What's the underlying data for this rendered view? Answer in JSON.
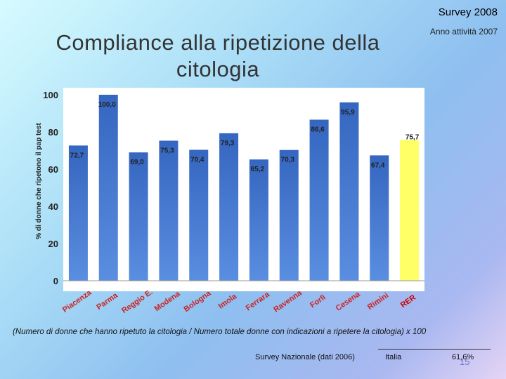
{
  "header": {
    "survey": "Survey 2008",
    "activity": "Anno attività 2007"
  },
  "title": "Compliance alla ripetizione della citologia",
  "chart_data": {
    "type": "bar",
    "title": "Compliance alla ripetizione della citologia",
    "ylabel": "% di donne che ripetono il pap test",
    "xlabel": "",
    "ylim": [
      0,
      100
    ],
    "yticks": [
      0,
      20,
      40,
      60,
      80,
      100
    ],
    "grid": false,
    "categories": [
      "Piacenza",
      "Parma",
      "Reggio E.",
      "Modena",
      "Bologna",
      "Imola",
      "Ferrara",
      "Ravenna",
      "Forlì",
      "Cesena",
      "Rimini",
      "RER"
    ],
    "values": [
      72.7,
      100.0,
      69.0,
      75.3,
      70.4,
      79.3,
      65.2,
      70.3,
      86.6,
      95.9,
      67.4,
      75.7
    ],
    "value_labels": [
      "72,7",
      "100,0",
      "69,0",
      "75,3",
      "70,4",
      "79,3",
      "65,2",
      "70,3",
      "86,6",
      "95,9",
      "67,4",
      "75,7"
    ],
    "bar_color": "#3f6fc4",
    "highlight_color": "#ffff66",
    "highlight_index": 11
  },
  "footnote": "(Numero di donne che hanno ripetuto la citologia / Numero totale donne con indicazioni a ripetere la citologia) x 100",
  "footer": {
    "survey_label": "Survey Nazionale (dati 2006)",
    "italia_label": "Italia",
    "italia_value": "61,6%",
    "page_number": "15"
  }
}
